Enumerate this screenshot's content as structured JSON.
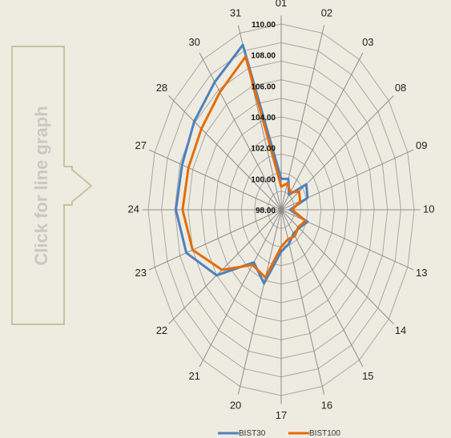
{
  "nav_button": {
    "label": "Click for line graph",
    "color": "#c8c39a"
  },
  "chart_data": {
    "type": "radar",
    "categories": [
      "01",
      "02",
      "03",
      "08",
      "09",
      "10",
      "13",
      "14",
      "15",
      "16",
      "17",
      "20",
      "21",
      "22",
      "23",
      "24",
      "27",
      "28",
      "30",
      "31"
    ],
    "tick_labels": [
      "98.00",
      "100.00",
      "102.00",
      "104.00",
      "106.00",
      "108.00",
      "110.00"
    ],
    "rlim": [
      98,
      110
    ],
    "grid": true,
    "legend_position": "bottom",
    "series": [
      {
        "name": "BIST30",
        "color": "#4f81bd",
        "values": [
          100.0,
          100.1,
          99.2,
          100.8,
          100.5,
          98.8,
          100.5,
          100.0,
          99.9,
          100.3,
          100.7,
          103.0,
          102.2,
          105.2,
          107.0,
          107.5,
          107.4,
          107.7,
          108.2,
          109.2
        ]
      },
      {
        "name": "BIST100",
        "color": "#e46c0a",
        "values": [
          99.5,
          99.8,
          99.4,
          100.0,
          99.8,
          99.0,
          100.3,
          99.9,
          100.1,
          100.0,
          100.4,
          102.6,
          102.4,
          104.6,
          106.4,
          106.9,
          106.8,
          106.9,
          107.4,
          108.4
        ]
      }
    ]
  }
}
